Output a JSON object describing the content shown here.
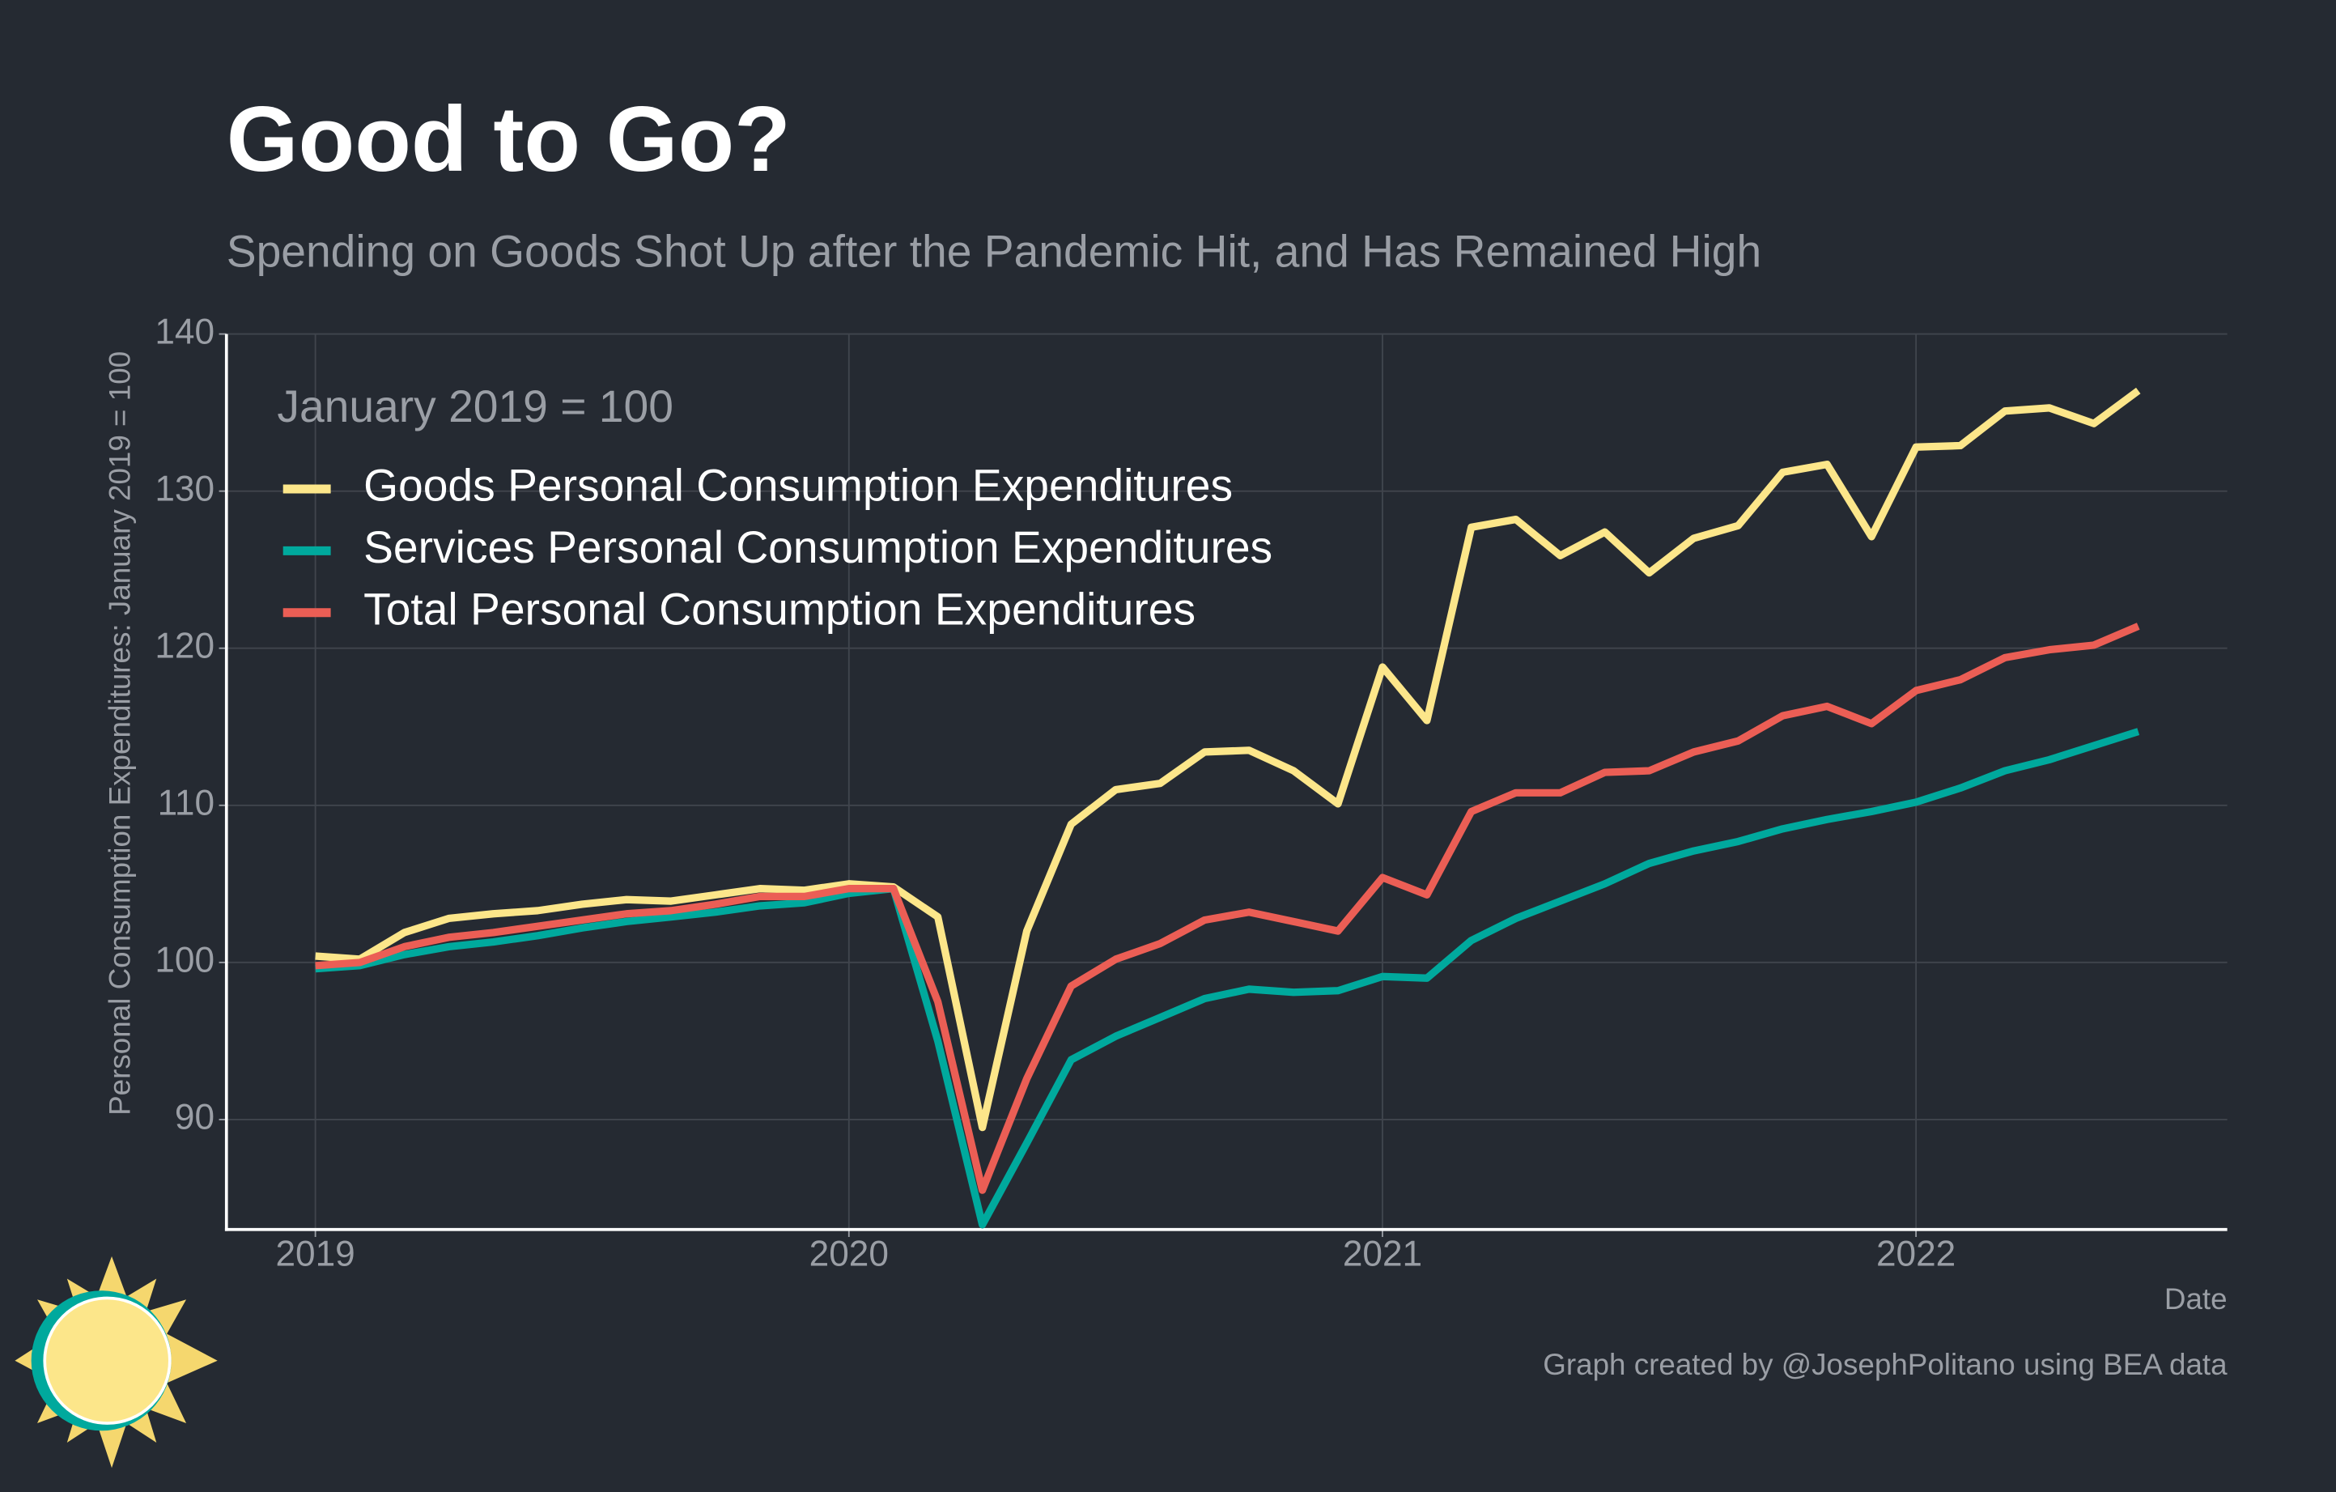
{
  "chart_data": {
    "type": "line",
    "title": "Good to Go?",
    "subtitle": "Spending on Goods Shot Up after the Pandemic Hit, and Has Remained High",
    "y_label": "Personal Consumption Expenditures: January 2019 = 100",
    "x_label": "Date",
    "legend_title": "January 2019 = 100",
    "caption": "Graph created by @JosephPolitano using BEA data",
    "x": [
      "2019-01",
      "2019-02",
      "2019-03",
      "2019-04",
      "2019-05",
      "2019-06",
      "2019-07",
      "2019-08",
      "2019-09",
      "2019-10",
      "2019-11",
      "2019-12",
      "2020-01",
      "2020-02",
      "2020-03",
      "2020-04",
      "2020-05",
      "2020-06",
      "2020-07",
      "2020-08",
      "2020-09",
      "2020-10",
      "2020-11",
      "2020-12",
      "2021-01",
      "2021-02",
      "2021-03",
      "2021-04",
      "2021-05",
      "2021-06",
      "2021-07",
      "2021-08",
      "2021-09",
      "2021-10",
      "2021-11",
      "2021-12",
      "2022-01",
      "2022-02",
      "2022-03",
      "2022-04",
      "2022-05",
      "2022-06"
    ],
    "series": [
      {
        "name": "Goods Personal Consumption Expenditures",
        "color": "#fce68a",
        "values": [
          100.4,
          100.2,
          101.9,
          102.8,
          103.1,
          103.3,
          103.7,
          104.0,
          103.9,
          104.3,
          104.7,
          104.6,
          105.0,
          104.8,
          102.9,
          89.5,
          102.0,
          108.8,
          111.0,
          111.4,
          113.4,
          113.5,
          112.2,
          110.1,
          118.8,
          115.4,
          127.7,
          128.2,
          125.9,
          127.4,
          124.8,
          127.0,
          127.8,
          131.2,
          131.7,
          127.1,
          132.8,
          132.9,
          135.1,
          135.3,
          134.3,
          136.4
        ]
      },
      {
        "name": "Services Personal Consumption Expenditures",
        "color": "#00a99d",
        "values": [
          99.6,
          99.8,
          100.5,
          101.0,
          101.3,
          101.7,
          102.2,
          102.6,
          102.9,
          103.2,
          103.6,
          103.8,
          104.4,
          104.7,
          95.0,
          83.3,
          88.5,
          93.8,
          95.3,
          96.5,
          97.7,
          98.3,
          98.1,
          98.2,
          99.1,
          99.0,
          101.4,
          102.8,
          103.9,
          105.0,
          106.3,
          107.1,
          107.7,
          108.5,
          109.1,
          109.6,
          110.2,
          111.1,
          112.2,
          112.9,
          113.8,
          114.7
        ]
      },
      {
        "name": "Total Personal Consumption Expenditures",
        "color": "#eb5e55",
        "values": [
          99.8,
          100.0,
          101.0,
          101.6,
          101.9,
          102.3,
          102.7,
          103.1,
          103.3,
          103.7,
          104.2,
          104.2,
          104.7,
          104.7,
          97.5,
          85.5,
          92.6,
          98.5,
          100.2,
          101.2,
          102.7,
          103.2,
          102.6,
          102.0,
          105.4,
          104.3,
          109.6,
          110.8,
          110.8,
          112.1,
          112.2,
          113.4,
          114.1,
          115.7,
          116.3,
          115.2,
          117.3,
          118.0,
          119.4,
          119.9,
          120.2,
          121.4
        ]
      }
    ],
    "xlim": [
      "2018-11",
      "2022-08"
    ],
    "xticks": [
      "2019",
      "2020",
      "2021",
      "2022"
    ],
    "ylim": [
      83,
      140
    ],
    "yticks": [
      90,
      100,
      110,
      120,
      130,
      140
    ],
    "grid": true,
    "legend_position": "top-left"
  }
}
